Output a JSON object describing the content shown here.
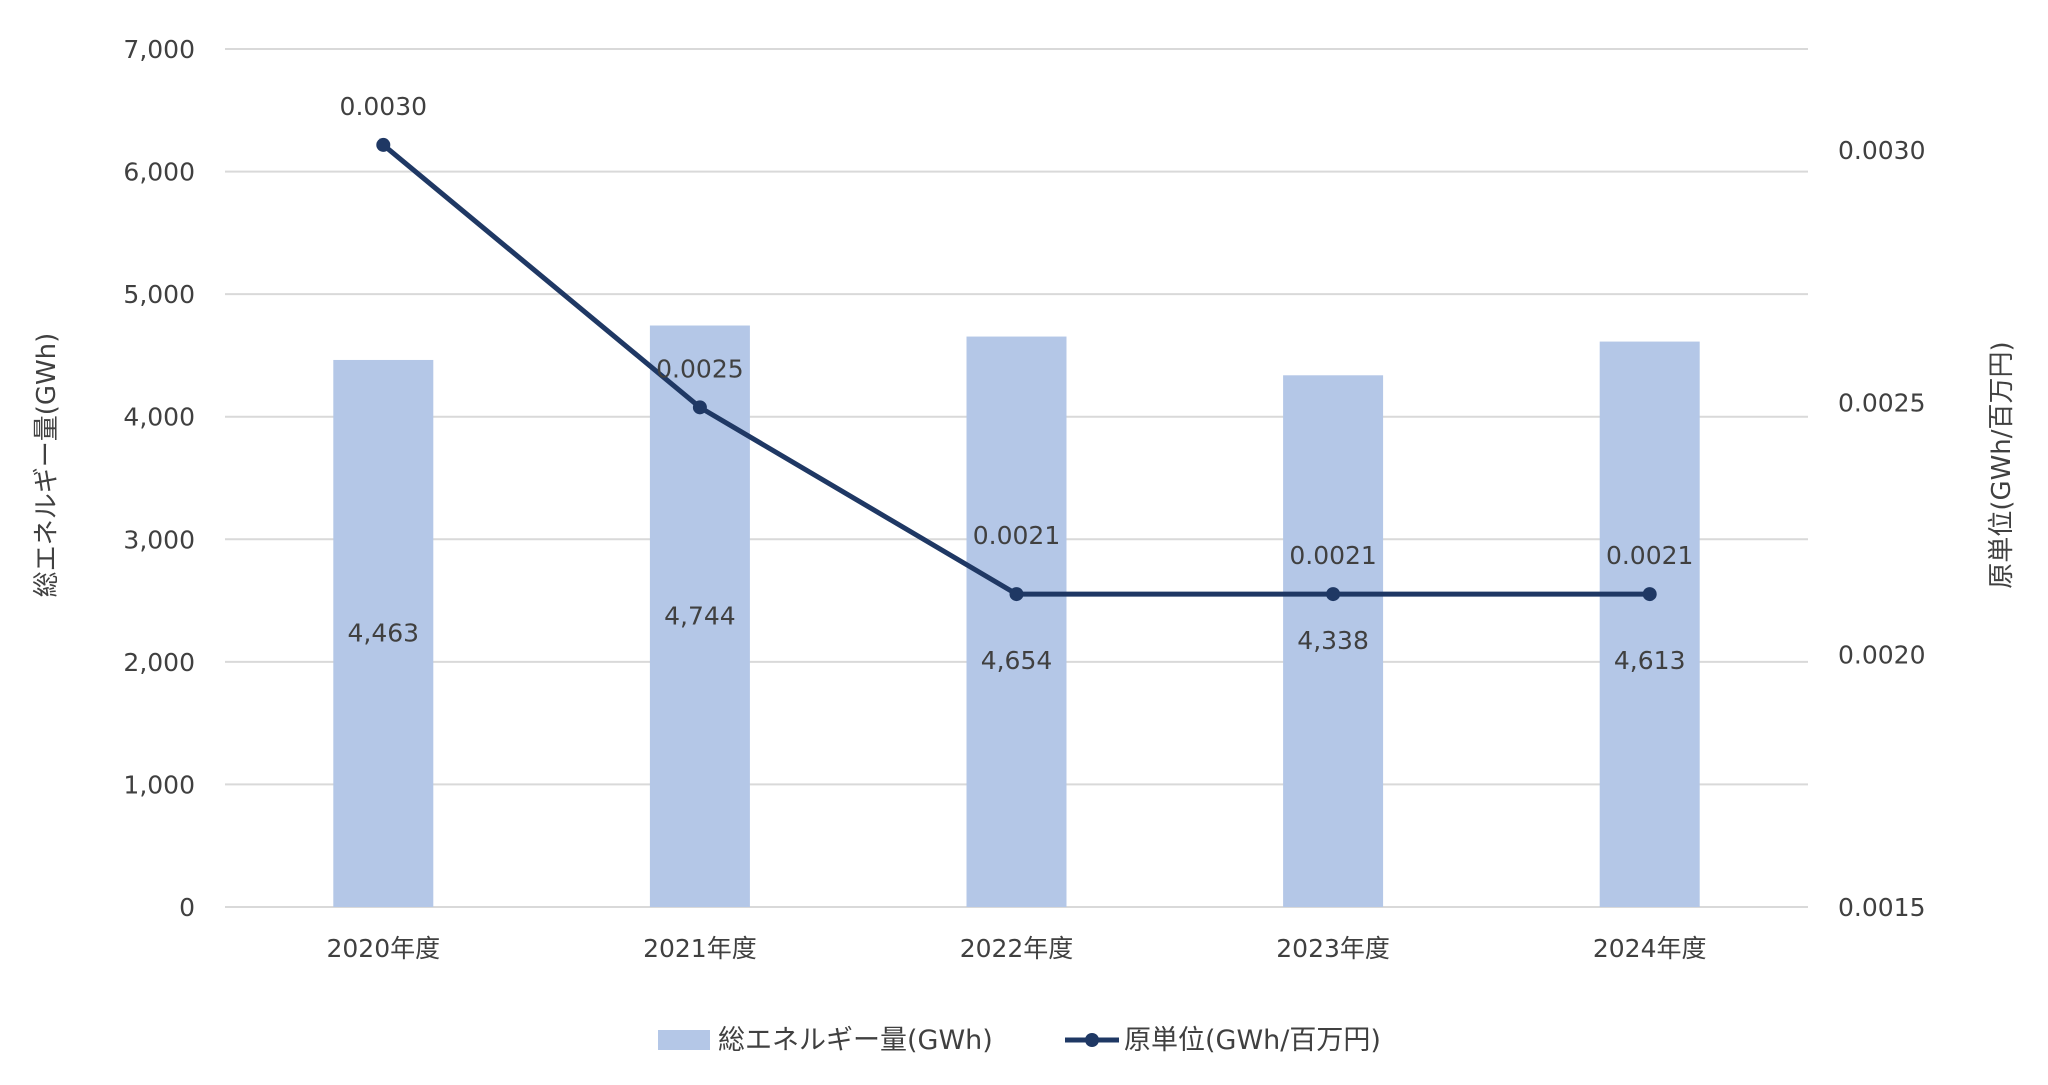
{
  "chart_data": {
    "type": "bar+line",
    "categories": [
      "2020年度",
      "2021年度",
      "2022年度",
      "2023年度",
      "2024年度"
    ],
    "series": [
      {
        "name": "総エネルギー量(GWh)",
        "type": "bar",
        "axis": "left",
        "values": [
          4463,
          4744,
          4654,
          4338,
          4613
        ],
        "labels": [
          "4,463",
          "4,744",
          "4,654",
          "4,338",
          "4,613"
        ],
        "color": "#b4c7e7"
      },
      {
        "name": "原単位(GWh/百万円)",
        "type": "line",
        "axis": "right",
        "values": [
          0.003,
          0.0025,
          0.0021,
          0.0021,
          0.0021
        ],
        "plot_values": [
          0.00301,
          0.00249,
          0.00212,
          0.00212,
          0.00212
        ],
        "labels": [
          "0.0030",
          "0.0025",
          "0.0021",
          "0.0021",
          "0.0021"
        ],
        "color": "#1f3864"
      }
    ],
    "y_left": {
      "label": "総エネルギー量(GWh)",
      "ylim": [
        0,
        7000
      ],
      "ticks": [
        0,
        1000,
        2000,
        3000,
        4000,
        5000,
        6000,
        7000
      ],
      "tick_labels": [
        "0",
        "1,000",
        "2,000",
        "3,000",
        "4,000",
        "5,000",
        "6,000",
        "7,000"
      ]
    },
    "y_right": {
      "label": "原単位(GWh/百万円)",
      "ylim": [
        0.0015,
        0.0032
      ],
      "ticks": [
        0.0015,
        0.002,
        0.0025,
        0.003
      ],
      "tick_labels": [
        "0.0015",
        "0.0020",
        "0.0025",
        "0.0030"
      ]
    },
    "grid": true,
    "legend_position": "bottom"
  }
}
